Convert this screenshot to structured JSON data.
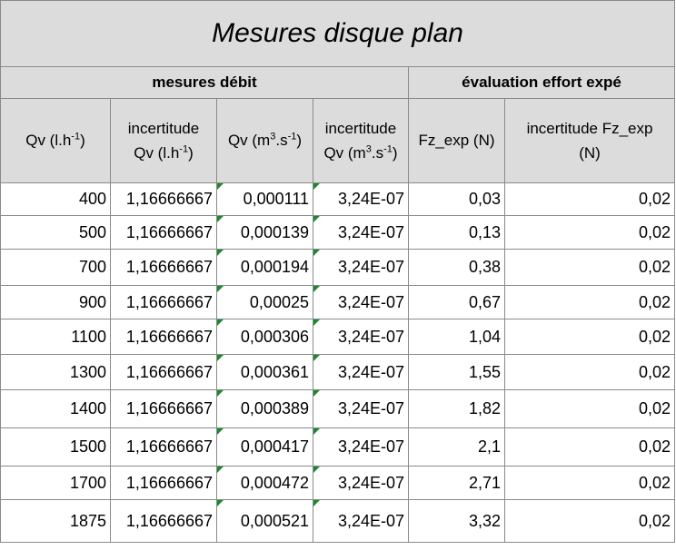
{
  "title": "Mesures disque plan",
  "groups": {
    "flow": "mesures débit",
    "force": "évaluation effort expé"
  },
  "headers": {
    "qv_prefix": "Qv (l.h",
    "qv_exp": "-1",
    "qv_suffix": ")",
    "inc_qv_l1": "incertitude",
    "inc_qv_prefix": "Qv (l.h",
    "inc_qv_exp": "-1",
    "inc_qv_suffix": ")",
    "qv_si_prefix": "Qv (m",
    "qv_si_exp1": "3",
    "qv_si_mid": ".s",
    "qv_si_exp2": "-1",
    "qv_si_suffix": ")",
    "inc_si_l1": "incertitude",
    "inc_si_prefix": "Qv (m",
    "inc_si_exp1": "3",
    "inc_si_mid": ".s",
    "inc_si_exp2": "-1",
    "inc_si_suffix": ")",
    "fz": "Fz_exp (N)",
    "inc_fz_l1": "incertitude Fz_exp",
    "inc_fz_l2": "(N)"
  },
  "rows": [
    {
      "qv": "400",
      "inc_qv": "1,16666667",
      "qv_si": "0,000111",
      "inc_si": "3,24E-07",
      "fz": "0,03",
      "inc_fz": "0,02"
    },
    {
      "qv": "500",
      "inc_qv": "1,16666667",
      "qv_si": "0,000139",
      "inc_si": "3,24E-07",
      "fz": "0,13",
      "inc_fz": "0,02"
    },
    {
      "qv": "700",
      "inc_qv": "1,16666667",
      "qv_si": "0,000194",
      "inc_si": "3,24E-07",
      "fz": "0,38",
      "inc_fz": "0,02"
    },
    {
      "qv": "900",
      "inc_qv": "1,16666667",
      "qv_si": "0,00025",
      "inc_si": "3,24E-07",
      "fz": "0,67",
      "inc_fz": "0,02"
    },
    {
      "qv": "1100",
      "inc_qv": "1,16666667",
      "qv_si": "0,000306",
      "inc_si": "3,24E-07",
      "fz": "1,04",
      "inc_fz": "0,02"
    },
    {
      "qv": "1300",
      "inc_qv": "1,16666667",
      "qv_si": "0,000361",
      "inc_si": "3,24E-07",
      "fz": "1,55",
      "inc_fz": "0,02"
    },
    {
      "qv": "1400",
      "inc_qv": "1,16666667",
      "qv_si": "0,000389",
      "inc_si": "3,24E-07",
      "fz": "1,82",
      "inc_fz": "0,02"
    },
    {
      "qv": "1500",
      "inc_qv": "1,16666667",
      "qv_si": "0,000417",
      "inc_si": "3,24E-07",
      "fz": "2,1",
      "inc_fz": "0,02"
    },
    {
      "qv": "1700",
      "inc_qv": "1,16666667",
      "qv_si": "0,000472",
      "inc_si": "3,24E-07",
      "fz": "2,71",
      "inc_fz": "0,02"
    },
    {
      "qv": "1875",
      "inc_qv": "1,16666667",
      "qv_si": "0,000521",
      "inc_si": "3,24E-07",
      "fz": "3,32",
      "inc_fz": "0,02"
    }
  ],
  "colors": {
    "header_bg": "#dcdcdc",
    "grid": "#8a8a8a",
    "indicator": "#1b8a2e"
  }
}
